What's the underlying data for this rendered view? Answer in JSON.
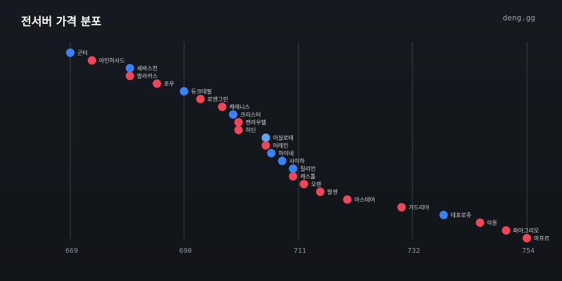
{
  "header": {
    "title": "전서버 가격 분포",
    "brand": "deng.gg"
  },
  "colors": {
    "background": "#14181e",
    "grid": "#3a3f47",
    "tick_text": "#8b939c",
    "label_text": "#d7dbe0",
    "blue": "#3b82f6",
    "red": "#f04758",
    "light_blue": "#60a5fa"
  },
  "chart_data": {
    "type": "scatter",
    "title": "전서버 가격 분포",
    "xlabel": "",
    "ylabel": "",
    "xlim": [
      669,
      754
    ],
    "xticks": [
      669,
      690,
      711,
      732,
      754
    ],
    "grid": true,
    "points": [
      {
        "label": "군터",
        "value": 669.0,
        "color": "blue"
      },
      {
        "label": "아인하사드",
        "value": 673.0,
        "color": "red"
      },
      {
        "label": "세바스찬",
        "value": 680.0,
        "color": "blue"
      },
      {
        "label": "발라카스",
        "value": 680.0,
        "color": "red"
      },
      {
        "label": "조우",
        "value": 685.0,
        "color": "red"
      },
      {
        "label": "듀크데필",
        "value": 690.0,
        "color": "blue"
      },
      {
        "label": "로엔그린",
        "value": 693.0,
        "color": "red"
      },
      {
        "label": "케레니스",
        "value": 697.0,
        "color": "red"
      },
      {
        "label": "크리스터",
        "value": 699.0,
        "color": "blue"
      },
      {
        "label": "켄라우헬",
        "value": 700.0,
        "color": "red"
      },
      {
        "label": "하딘",
        "value": 700.0,
        "color": "red"
      },
      {
        "label": "이실로테",
        "value": 705.0,
        "color": "light_blue"
      },
      {
        "label": "어레인",
        "value": 705.0,
        "color": "red"
      },
      {
        "label": "하이네",
        "value": 706.0,
        "color": "blue"
      },
      {
        "label": "사이하",
        "value": 708.0,
        "color": "blue"
      },
      {
        "label": "질리언",
        "value": 710.0,
        "color": "blue"
      },
      {
        "label": "캐스톨",
        "value": 710.0,
        "color": "red"
      },
      {
        "label": "오렌",
        "value": 712.0,
        "color": "red"
      },
      {
        "label": "발센",
        "value": 715.0,
        "color": "red"
      },
      {
        "label": "아스테어",
        "value": 720.0,
        "color": "red"
      },
      {
        "label": "가드리아",
        "value": 730.0,
        "color": "red"
      },
      {
        "label": "데포로쥬",
        "value": 738.0,
        "color": "blue"
      },
      {
        "label": "아툰",
        "value": 745.0,
        "color": "red"
      },
      {
        "label": "파아그리오",
        "value": 750.0,
        "color": "red"
      },
      {
        "label": "마프르",
        "value": 754.0,
        "color": "red"
      }
    ]
  }
}
